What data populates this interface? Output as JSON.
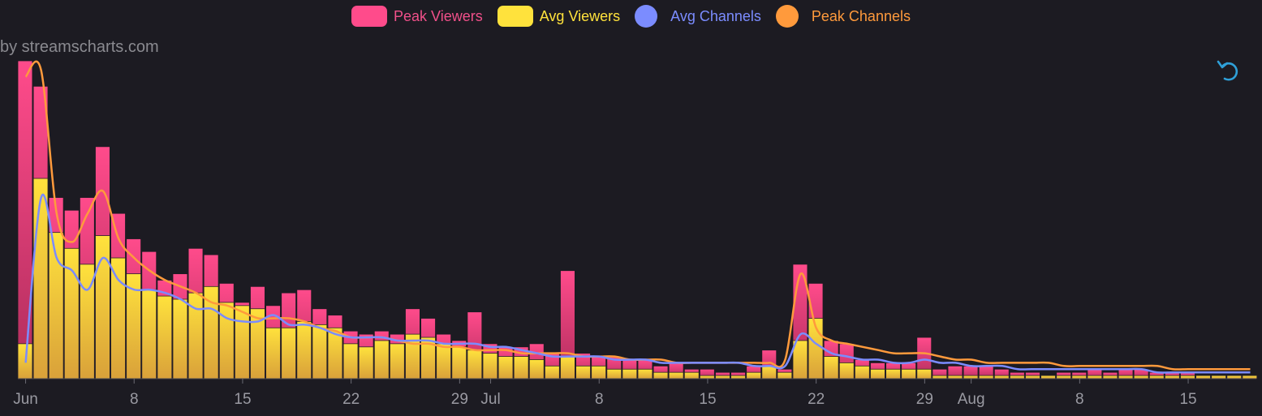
{
  "credit": "by streamscharts.com",
  "legend": [
    {
      "key": "peak_viewers",
      "label": "Peak Viewers",
      "color": "#ff4b8b",
      "text_color": "#f0508a",
      "shape": "rect"
    },
    {
      "key": "avg_viewers",
      "label": "Avg Viewers",
      "color": "#ffe23c",
      "text_color": "#ffe23c",
      "shape": "rect"
    },
    {
      "key": "avg_channels",
      "label": "Avg Channels",
      "color": "#7b8cff",
      "text_color": "#7b8cff",
      "shape": "circle"
    },
    {
      "key": "peak_channels",
      "label": "Peak Channels",
      "color": "#ff9a3c",
      "text_color": "#ff9a3c",
      "shape": "circle"
    }
  ],
  "reset_icon": "reset-zoom-icon",
  "chart_data": {
    "type": "bar",
    "title": "",
    "xlabel": "",
    "ylabel": "",
    "x_ticks": [
      "Jun",
      "8",
      "15",
      "22",
      "29",
      "Jul",
      "8",
      "15",
      "22",
      "29",
      "Aug",
      "8",
      "15"
    ],
    "y_axis_labels": "none",
    "note": "Y axis is unlabeled; bar values are relative heights on a 0-100 scale. Channel lines share the same relative scale.",
    "ylim": [
      0,
      100
    ],
    "categories": [
      "Jun 1",
      "Jun 2",
      "Jun 3",
      "Jun 4",
      "Jun 5",
      "Jun 6",
      "Jun 7",
      "Jun 8",
      "Jun 9",
      "Jun 10",
      "Jun 11",
      "Jun 12",
      "Jun 13",
      "Jun 14",
      "Jun 15",
      "Jun 16",
      "Jun 17",
      "Jun 18",
      "Jun 19",
      "Jun 20",
      "Jun 21",
      "Jun 22",
      "Jun 23",
      "Jun 24",
      "Jun 25",
      "Jun 26",
      "Jun 27",
      "Jun 28",
      "Jun 29",
      "Jun 30",
      "Jul 1",
      "Jul 2",
      "Jul 3",
      "Jul 4",
      "Jul 5",
      "Jul 6",
      "Jul 7",
      "Jul 8",
      "Jul 9",
      "Jul 10",
      "Jul 11",
      "Jul 12",
      "Jul 13",
      "Jul 14",
      "Jul 15",
      "Jul 16",
      "Jul 17",
      "Jul 18",
      "Jul 19",
      "Jul 20",
      "Jul 21",
      "Jul 22",
      "Jul 23",
      "Jul 24",
      "Jul 25",
      "Jul 26",
      "Jul 27",
      "Jul 28",
      "Jul 29",
      "Jul 30",
      "Jul 31",
      "Aug 1",
      "Aug 2",
      "Aug 3",
      "Aug 4",
      "Aug 5",
      "Aug 6",
      "Aug 7",
      "Aug 8",
      "Aug 9",
      "Aug 10",
      "Aug 11",
      "Aug 12",
      "Aug 13",
      "Aug 14",
      "Aug 15",
      "Aug 16",
      "Aug 17",
      "Aug 18",
      "Aug 19"
    ],
    "series": [
      {
        "name": "Peak Viewers",
        "values": [
          100,
          92,
          57,
          53,
          57,
          73,
          52,
          44,
          40,
          31,
          33,
          41,
          39,
          30,
          24,
          29,
          23,
          27,
          28,
          22,
          20,
          15,
          14,
          15,
          14,
          22,
          19,
          14,
          12,
          21,
          11,
          10,
          10,
          11,
          8,
          34,
          8,
          7,
          7,
          6,
          6,
          4,
          5,
          3,
          3,
          2,
          2,
          4,
          9,
          3,
          36,
          30,
          12,
          11,
          6,
          5,
          5,
          5,
          13,
          3,
          4,
          4,
          4,
          3,
          2,
          2,
          1,
          2,
          2,
          3,
          2,
          3,
          3,
          2,
          2,
          2,
          1,
          1,
          1,
          1
        ]
      },
      {
        "name": "Avg Viewers",
        "values": [
          11,
          63,
          46,
          41,
          36,
          45,
          38,
          33,
          28,
          26,
          25,
          27,
          29,
          24,
          23,
          22,
          16,
          16,
          18,
          17,
          16,
          11,
          10,
          12,
          11,
          14,
          13,
          11,
          10,
          9,
          8,
          7,
          7,
          6,
          4,
          7,
          4,
          4,
          3,
          3,
          3,
          2,
          2,
          2,
          1,
          1,
          1,
          2,
          4,
          2,
          12,
          19,
          7,
          5,
          4,
          3,
          3,
          3,
          3,
          1,
          1,
          1,
          1,
          1,
          1,
          1,
          1,
          1,
          1,
          1,
          1,
          1,
          1,
          1,
          1,
          1,
          1,
          1,
          1,
          1
        ]
      },
      {
        "name": "Avg Channels",
        "values": [
          5,
          57,
          38,
          34,
          28,
          38,
          31,
          28,
          28,
          27,
          25,
          22,
          22,
          19,
          18,
          18,
          20,
          17,
          17,
          16,
          14,
          13,
          13,
          13,
          12,
          12,
          12,
          11,
          11,
          11,
          10,
          10,
          9,
          8,
          7,
          7,
          7,
          7,
          6,
          6,
          6,
          5,
          5,
          5,
          5,
          5,
          5,
          4,
          4,
          4,
          14,
          11,
          8,
          7,
          6,
          6,
          5,
          5,
          6,
          5,
          5,
          4,
          4,
          4,
          3,
          3,
          3,
          3,
          3,
          3,
          3,
          3,
          3,
          2,
          2,
          2,
          2,
          2,
          2,
          2
        ]
      },
      {
        "name": "Peak Channels",
        "values": [
          95,
          97,
          52,
          43,
          52,
          59,
          44,
          38,
          34,
          31,
          29,
          27,
          24,
          23,
          21,
          19,
          19,
          19,
          18,
          16,
          15,
          13,
          13,
          13,
          12,
          11,
          11,
          10,
          10,
          9,
          9,
          9,
          8,
          8,
          8,
          8,
          7,
          7,
          7,
          6,
          6,
          6,
          5,
          5,
          5,
          5,
          5,
          5,
          5,
          6,
          33,
          16,
          12,
          11,
          10,
          9,
          8,
          8,
          8,
          7,
          6,
          6,
          5,
          5,
          5,
          5,
          5,
          4,
          4,
          4,
          4,
          4,
          4,
          4,
          3,
          3,
          3,
          3,
          3,
          3
        ]
      }
    ]
  }
}
